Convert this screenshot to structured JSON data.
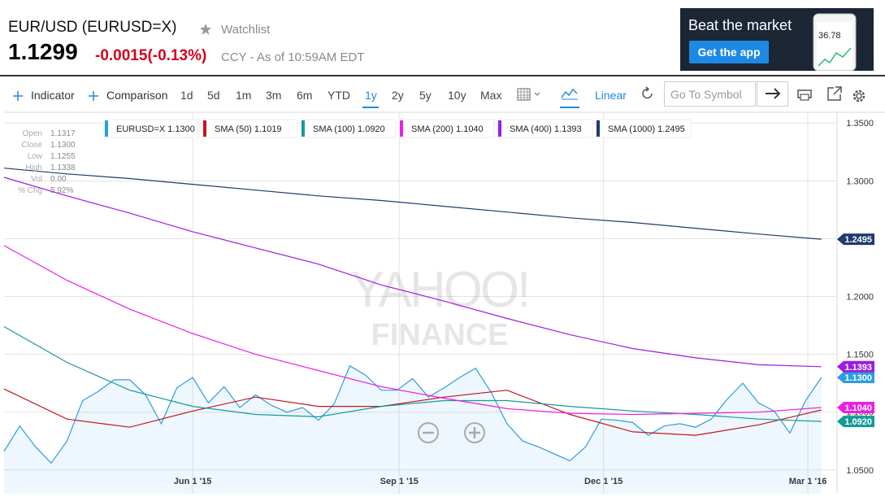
{
  "header": {
    "title": "EUR/USD (EURUSD=X)",
    "watchlist": "Watchlist",
    "price": "1.1299",
    "change": "-0.0015(-0.13%)",
    "meta": "CCY - As of 10:59AM EDT"
  },
  "ad": {
    "headline": "Beat the market",
    "button": "Get the app",
    "phone_value": "36.78"
  },
  "toolbar": {
    "indicator": "Indicator",
    "comparison": "Comparison",
    "ranges": [
      "1d",
      "5d",
      "1m",
      "3m",
      "6m",
      "YTD",
      "1y",
      "2y",
      "5y",
      "10y",
      "Max"
    ],
    "scale": "Linear",
    "search_placeholder": "Go To Symbol"
  },
  "info": [
    {
      "label": "Open",
      "value": "1.1317"
    },
    {
      "label": "Close",
      "value": "1.1300"
    },
    {
      "label": "Low",
      "value": "1.1255"
    },
    {
      "label": "High",
      "value": "1.1338"
    },
    {
      "label": "Vol",
      "value": "0.00"
    },
    {
      "label": "% Chg",
      "value": "5.92%"
    }
  ],
  "watermark": [
    "YAHOO!",
    "FINANCE"
  ],
  "chart_data": {
    "type": "line",
    "xlim": [
      "2015-03-09",
      "2016-03-14"
    ],
    "xticks": [
      {
        "value": "2015-06-01",
        "label": "Jun 1 '15"
      },
      {
        "value": "2015-09-01",
        "label": "Sep 1 '15"
      },
      {
        "value": "2015-12-01",
        "label": "Dec 1 '15"
      },
      {
        "value": "2016-03-01",
        "label": "Mar 1 '16"
      }
    ],
    "ylim": [
      1.04,
      1.36
    ],
    "yticks": [
      {
        "value": 1.05,
        "label": "1.0500"
      },
      {
        "value": 1.1,
        "label": "1.1000"
      },
      {
        "value": 1.15,
        "label": "1.1500"
      },
      {
        "value": 1.2,
        "label": "1.2000"
      },
      {
        "value": 1.25,
        "label": "1.2500"
      },
      {
        "value": 1.3,
        "label": "1.3000"
      },
      {
        "value": 1.35,
        "label": "1.3500"
      }
    ],
    "grid": true,
    "series": [
      {
        "name": "EURUSD=X 1.1300",
        "color": "#2b9ee0",
        "fill": true,
        "end_label": "1.1300",
        "x": [
          "2015-03-09",
          "2015-03-16",
          "2015-03-23",
          "2015-03-30",
          "2015-04-06",
          "2015-04-13",
          "2015-04-20",
          "2015-04-27",
          "2015-05-04",
          "2015-05-11",
          "2015-05-18",
          "2015-05-25",
          "2015-06-01",
          "2015-06-08",
          "2015-06-15",
          "2015-06-22",
          "2015-06-29",
          "2015-07-06",
          "2015-07-13",
          "2015-07-20",
          "2015-07-27",
          "2015-08-03",
          "2015-08-10",
          "2015-08-17",
          "2015-08-24",
          "2015-08-31",
          "2015-09-07",
          "2015-09-14",
          "2015-09-21",
          "2015-09-28",
          "2015-10-05",
          "2015-10-12",
          "2015-10-19",
          "2015-10-26",
          "2015-11-02",
          "2015-11-09",
          "2015-11-16",
          "2015-11-23",
          "2015-11-30",
          "2015-12-07",
          "2015-12-14",
          "2015-12-21",
          "2015-12-28",
          "2016-01-04",
          "2016-01-11",
          "2016-01-18",
          "2016-01-25",
          "2016-02-01",
          "2016-02-08",
          "2016-02-15",
          "2016-02-22",
          "2016-02-29",
          "2016-03-07"
        ],
        "values": [
          1.066,
          1.088,
          1.07,
          1.056,
          1.075,
          1.11,
          1.118,
          1.128,
          1.128,
          1.115,
          1.09,
          1.121,
          1.13,
          1.108,
          1.122,
          1.104,
          1.115,
          1.106,
          1.1,
          1.104,
          1.093,
          1.107,
          1.14,
          1.132,
          1.119,
          1.119,
          1.129,
          1.113,
          1.121,
          1.13,
          1.138,
          1.117,
          1.09,
          1.075,
          1.07,
          1.064,
          1.058,
          1.07,
          1.094,
          1.093,
          1.091,
          1.08,
          1.088,
          1.09,
          1.087,
          1.094,
          1.111,
          1.125,
          1.108,
          1.101,
          1.082,
          1.11,
          1.13
        ]
      },
      {
        "name": "SMA (50) 1.1019",
        "color": "#c4161c",
        "x": [
          "2015-03-09",
          "2015-04-06",
          "2015-05-04",
          "2015-06-01",
          "2015-06-29",
          "2015-07-27",
          "2015-08-24",
          "2015-09-21",
          "2015-10-19",
          "2015-11-16",
          "2015-12-14",
          "2016-01-11",
          "2016-02-08",
          "2016-03-07"
        ],
        "values": [
          1.12,
          1.094,
          1.087,
          1.101,
          1.113,
          1.105,
          1.105,
          1.113,
          1.119,
          1.098,
          1.083,
          1.08,
          1.089,
          1.1019
        ]
      },
      {
        "name": "SMA (100) 1.0920",
        "color": "#159a98",
        "end_label": "1.0920",
        "x": [
          "2015-03-09",
          "2015-04-06",
          "2015-05-04",
          "2015-06-01",
          "2015-06-29",
          "2015-07-27",
          "2015-08-24",
          "2015-09-21",
          "2015-10-19",
          "2015-11-16",
          "2015-12-14",
          "2016-01-11",
          "2016-02-08",
          "2016-03-07"
        ],
        "values": [
          1.174,
          1.143,
          1.119,
          1.105,
          1.098,
          1.096,
          1.105,
          1.11,
          1.11,
          1.105,
          1.101,
          1.098,
          1.094,
          1.092
        ]
      },
      {
        "name": "SMA (200) 1.1040",
        "color": "#ec1ee8",
        "end_label": "1.1040",
        "x": [
          "2015-03-09",
          "2015-04-06",
          "2015-05-04",
          "2015-06-01",
          "2015-06-29",
          "2015-07-27",
          "2015-08-24",
          "2015-09-21",
          "2015-10-19",
          "2015-11-16",
          "2015-12-14",
          "2016-01-11",
          "2016-02-08",
          "2016-03-07"
        ],
        "values": [
          1.244,
          1.214,
          1.189,
          1.168,
          1.15,
          1.136,
          1.122,
          1.112,
          1.103,
          1.099,
          1.098,
          1.099,
          1.1,
          1.104
        ]
      },
      {
        "name": "SMA (400) 1.1393",
        "color": "#9b1de0",
        "end_label": "1.1393",
        "x": [
          "2015-03-09",
          "2015-04-06",
          "2015-05-04",
          "2015-06-01",
          "2015-06-29",
          "2015-07-27",
          "2015-08-24",
          "2015-09-21",
          "2015-10-19",
          "2015-11-16",
          "2015-12-14",
          "2016-01-11",
          "2016-02-08",
          "2016-03-07"
        ],
        "values": [
          1.303,
          1.287,
          1.272,
          1.256,
          1.242,
          1.228,
          1.21,
          1.196,
          1.181,
          1.167,
          1.155,
          1.147,
          1.141,
          1.1393
        ]
      },
      {
        "name": "SMA (1000) 1.2495",
        "color": "#1f3b6f",
        "end_label": "1.2495",
        "x": [
          "2015-03-09",
          "2015-04-06",
          "2015-05-04",
          "2015-06-01",
          "2015-06-29",
          "2015-07-27",
          "2015-08-24",
          "2015-09-21",
          "2015-10-19",
          "2015-11-16",
          "2015-12-14",
          "2016-01-11",
          "2016-02-08",
          "2016-03-07"
        ],
        "values": [
          1.311,
          1.306,
          1.302,
          1.297,
          1.292,
          1.287,
          1.283,
          1.278,
          1.273,
          1.268,
          1.264,
          1.259,
          1.254,
          1.2495
        ]
      }
    ]
  }
}
